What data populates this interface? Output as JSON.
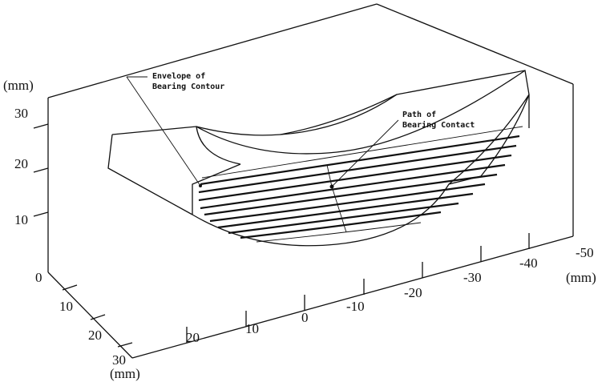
{
  "axes": {
    "z": {
      "unit": "(mm)",
      "ticks": [
        "30",
        "20",
        "10"
      ]
    },
    "y": {
      "unit": "(mm)",
      "ticks": [
        "0",
        "10",
        "20",
        "30"
      ]
    },
    "x": {
      "unit": "(mm)",
      "ticks": [
        "20",
        "10",
        "0",
        "-10",
        "-20",
        "-30",
        "-40",
        "-50"
      ]
    }
  },
  "annotations": [
    {
      "lines": [
        "Envelope of",
        "Bearing Contour"
      ]
    },
    {
      "lines": [
        "Path of",
        "Bearing Contact"
      ]
    }
  ]
}
